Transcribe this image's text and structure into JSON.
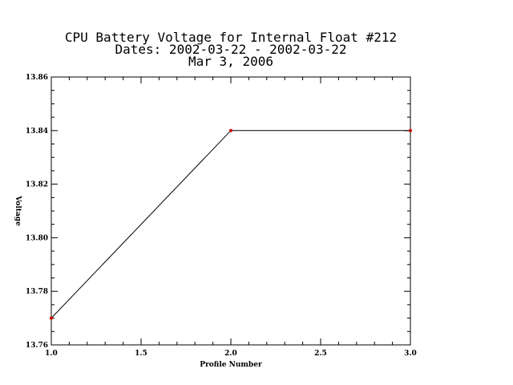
{
  "chart_data": {
    "type": "line",
    "title_lines": [
      "CPU Battery Voltage for Internal Float #212",
      "Dates:  2002-03-22 -  2002-03-22",
      "Mar  3, 2006"
    ],
    "xlabel": "Profile Number",
    "ylabel": "Voltage",
    "xlim": [
      1.0,
      3.0
    ],
    "ylim": [
      13.76,
      13.86
    ],
    "x_ticks": [
      "1.0",
      "1.5",
      "2.0",
      "2.5",
      "3.0"
    ],
    "x_tick_values": [
      1.0,
      1.5,
      2.0,
      2.5,
      3.0
    ],
    "y_ticks": [
      "13.76",
      "13.78",
      "13.80",
      "13.82",
      "13.84",
      "13.86"
    ],
    "y_tick_values": [
      13.76,
      13.78,
      13.8,
      13.82,
      13.84,
      13.86
    ],
    "series": [
      {
        "x": [
          1,
          2,
          3
        ],
        "values": [
          13.77,
          13.84,
          13.84
        ]
      }
    ],
    "line_color": "#000000",
    "marker_color": "#cc0000",
    "grid": false
  }
}
